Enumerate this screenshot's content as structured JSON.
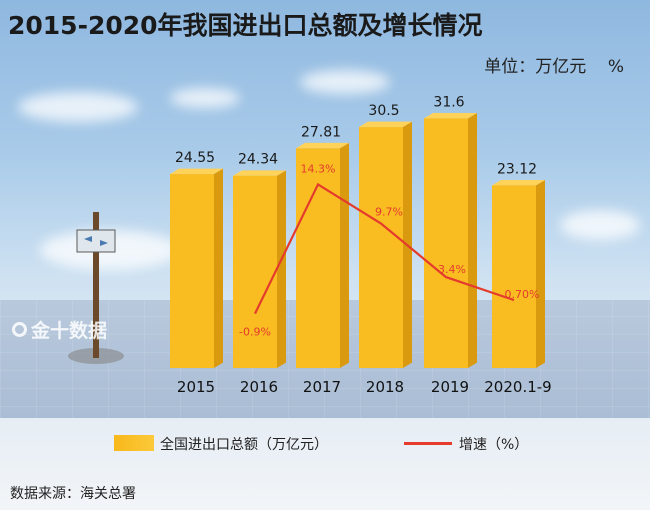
{
  "title": "2015-2020年我国进出口总额及增长情况",
  "unit": "单位：万亿元    %",
  "source": "数据来源：海关总署",
  "watermark": "金十数据",
  "legend": {
    "bar_label": "全国进出口总额（万亿元）",
    "line_label": "增速（%）"
  },
  "colors": {
    "bar": "#f9bd22",
    "bar_side": "#d99a10",
    "line": "#e43b2c"
  },
  "chart_data": {
    "type": "bar",
    "categories": [
      "2015",
      "2016",
      "2017",
      "2018",
      "2019",
      "2020.1-9"
    ],
    "series": [
      {
        "name": "全国进出口总额（万亿元）",
        "type": "bar",
        "values": [
          24.55,
          24.34,
          27.81,
          30.5,
          31.6,
          23.12
        ],
        "labels": [
          "24.55",
          "24.34",
          "27.81",
          "30.5",
          "31.6",
          "23.12"
        ]
      },
      {
        "name": "增速（%）",
        "type": "line",
        "values": [
          null,
          -0.9,
          14.3,
          9.7,
          3.4,
          0.7
        ],
        "labels": [
          "",
          "-0.9%",
          "14.3%",
          "9.7%",
          "3.4%",
          "0.70%"
        ]
      }
    ],
    "grid": false,
    "legend": "bottom"
  }
}
